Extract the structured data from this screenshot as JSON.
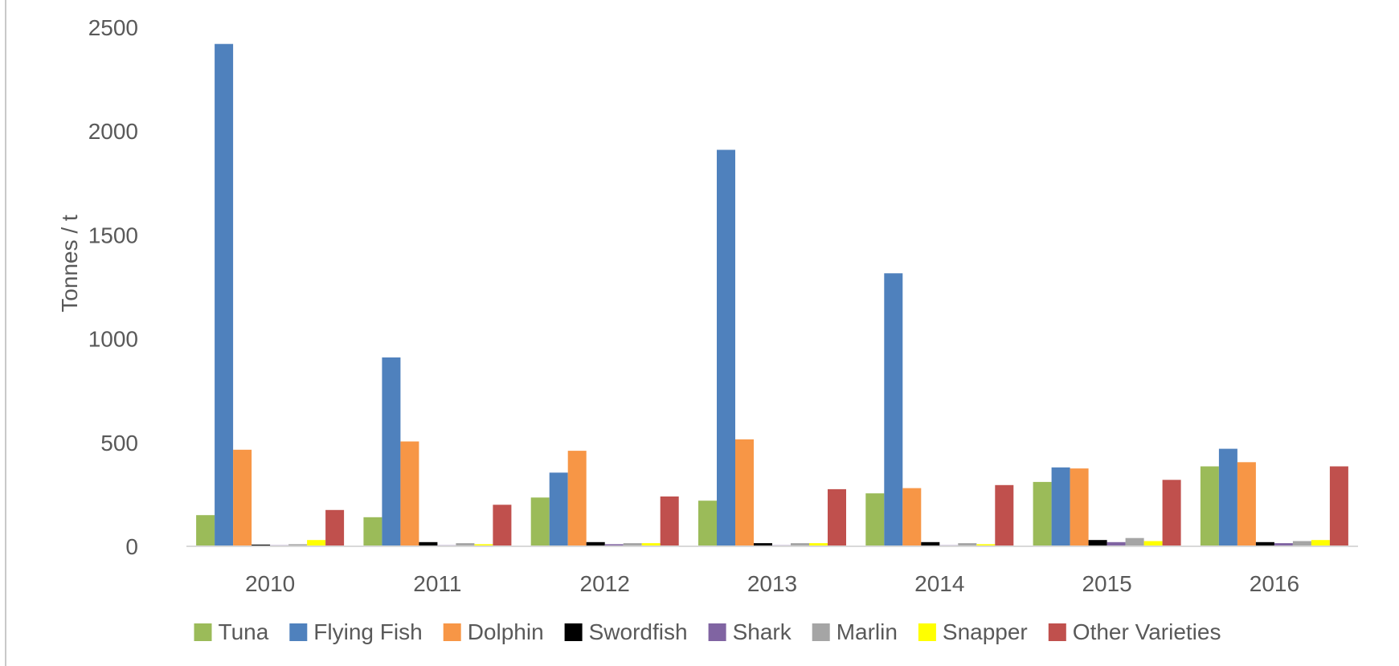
{
  "chart_data": {
    "type": "bar",
    "title": "",
    "xlabel": "",
    "ylabel": "Tonnes / t",
    "ylim": [
      0,
      2500
    ],
    "yticks": [
      0,
      500,
      1000,
      1500,
      2000,
      2500
    ],
    "grid": false,
    "legend_position": "bottom",
    "categories": [
      "2010",
      "2011",
      "2012",
      "2013",
      "2014",
      "2015",
      "2016"
    ],
    "series": [
      {
        "name": "Tuna",
        "color": "#9bbb59",
        "values": [
          150,
          140,
          235,
          220,
          255,
          310,
          385
        ]
      },
      {
        "name": "Flying Fish",
        "color": "#4f81bd",
        "values": [
          2420,
          910,
          355,
          1910,
          1315,
          380,
          470
        ]
      },
      {
        "name": "Dolphin",
        "color": "#f79646",
        "values": [
          465,
          505,
          460,
          515,
          280,
          375,
          405
        ]
      },
      {
        "name": "Swordfish",
        "color": "#000000",
        "values": [
          8,
          20,
          20,
          15,
          20,
          30,
          20
        ]
      },
      {
        "name": "Shark",
        "color": "#8064a2",
        "values": [
          5,
          5,
          10,
          5,
          5,
          20,
          15
        ]
      },
      {
        "name": "Marlin",
        "color": "#a5a5a5",
        "values": [
          10,
          15,
          15,
          15,
          15,
          40,
          25
        ]
      },
      {
        "name": "Snapper",
        "color": "#ffff00",
        "values": [
          30,
          10,
          15,
          15,
          10,
          25,
          30
        ]
      },
      {
        "name": "Other Varieties",
        "color": "#c0504d",
        "values": [
          175,
          200,
          240,
          275,
          295,
          320,
          385
        ]
      }
    ]
  }
}
